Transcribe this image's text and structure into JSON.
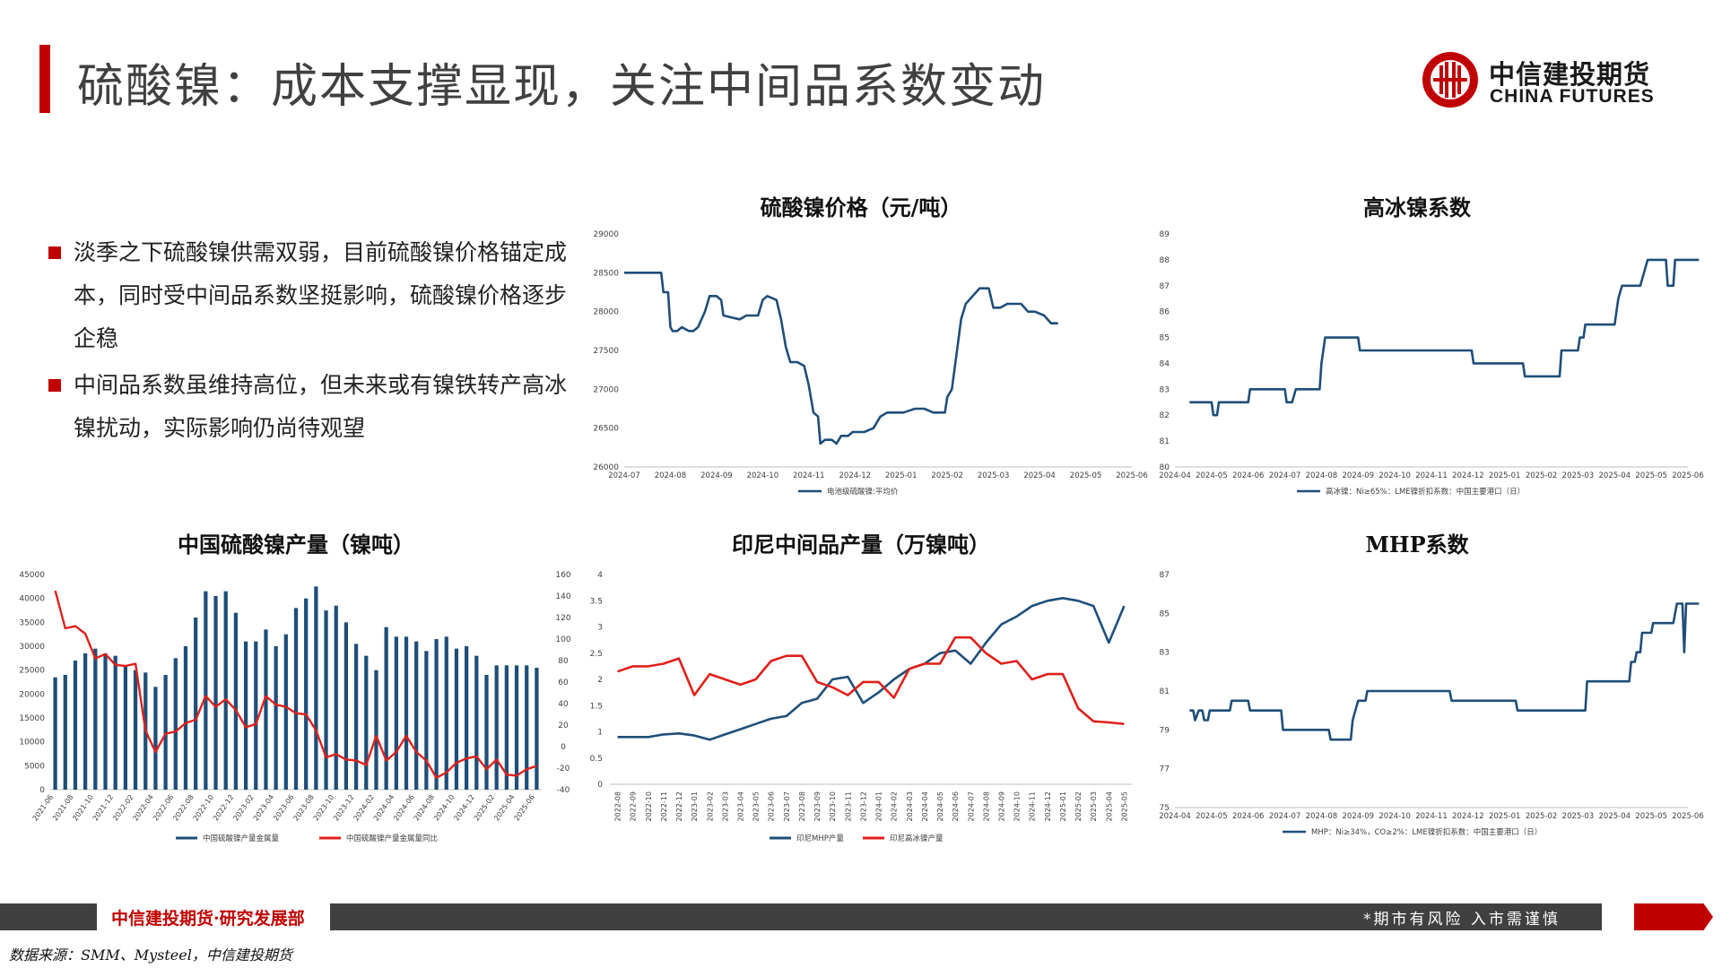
{
  "header": {
    "title": "硫酸镍：成本支撑显现，关注中间品系数变动",
    "logo_cn": "中信建投期货",
    "logo_en": "CHINA FUTURES"
  },
  "bullets": [
    "淡季之下硫酸镍供需双弱，目前硫酸镍价格锚定成本，同时受中间品系数坚挺影响，硫酸镍价格逐步企稳",
    "中间品系数虽维持高位，但未来或有镍铁转产高冰镍扰动，实际影响仍尚待观望"
  ],
  "footer": {
    "dept": "中信建投期货·研究发展部",
    "risk": "*期市有风险  入市需谨慎",
    "source": "数据来源：SMM、Mysteel，中信建投期货"
  },
  "colors": {
    "navy": "#1f4e79",
    "red": "#e0201b",
    "brand_red": "#c00000"
  },
  "chart_data": [
    {
      "id": "nickel-sulfate-price",
      "type": "line",
      "title": "硫酸镍价格（元/吨）",
      "x_ticks": [
        "2024-07",
        "2024-08",
        "2024-09",
        "2024-10",
        "2024-11",
        "2024-12",
        "2025-01",
        "2025-02",
        "2025-03",
        "2025-04",
        "2025-05",
        "2025-06"
      ],
      "y_ticks": [
        "26000",
        "26500",
        "27000",
        "27500",
        "28000",
        "28500",
        "29000"
      ],
      "ylim": [
        26000,
        29000
      ],
      "series": [
        {
          "name": "电池级硫酸镍:平均价",
          "color": "#1f4e79",
          "points": [
            [
              0,
              28500
            ],
            [
              0.8,
              28500
            ],
            [
              0.85,
              28250
            ],
            [
              0.95,
              28250
            ],
            [
              1.0,
              27800
            ],
            [
              1.05,
              27750
            ],
            [
              1.15,
              27750
            ],
            [
              1.25,
              27800
            ],
            [
              1.4,
              27750
            ],
            [
              1.5,
              27750
            ],
            [
              1.6,
              27800
            ],
            [
              1.75,
              28000
            ],
            [
              1.85,
              28200
            ],
            [
              2.0,
              28200
            ],
            [
              2.1,
              28150
            ],
            [
              2.15,
              27950
            ],
            [
              2.5,
              27900
            ],
            [
              2.65,
              27950
            ],
            [
              2.9,
              27950
            ],
            [
              3.0,
              28150
            ],
            [
              3.1,
              28200
            ],
            [
              3.3,
              28150
            ],
            [
              3.4,
              27900
            ],
            [
              3.5,
              27550
            ],
            [
              3.6,
              27350
            ],
            [
              3.75,
              27350
            ],
            [
              3.9,
              27300
            ],
            [
              4.0,
              27050
            ],
            [
              4.1,
              26700
            ],
            [
              4.2,
              26650
            ],
            [
              4.25,
              26300
            ],
            [
              4.35,
              26350
            ],
            [
              4.5,
              26350
            ],
            [
              4.6,
              26300
            ],
            [
              4.7,
              26400
            ],
            [
              4.85,
              26400
            ],
            [
              4.95,
              26450
            ],
            [
              5.2,
              26450
            ],
            [
              5.4,
              26500
            ],
            [
              5.55,
              26650
            ],
            [
              5.7,
              26700
            ],
            [
              5.9,
              26700
            ],
            [
              6.05,
              26700
            ],
            [
              6.3,
              26750
            ],
            [
              6.5,
              26750
            ],
            [
              6.7,
              26700
            ],
            [
              6.95,
              26700
            ],
            [
              7.0,
              26900
            ],
            [
              7.1,
              27000
            ],
            [
              7.2,
              27450
            ],
            [
              7.3,
              27900
            ],
            [
              7.4,
              28100
            ],
            [
              7.55,
              28200
            ],
            [
              7.7,
              28300
            ],
            [
              7.9,
              28300
            ],
            [
              8.0,
              28050
            ],
            [
              8.15,
              28050
            ],
            [
              8.3,
              28100
            ],
            [
              8.6,
              28100
            ],
            [
              8.75,
              28000
            ],
            [
              8.9,
              28000
            ],
            [
              9.1,
              27950
            ],
            [
              9.25,
              27850
            ],
            [
              9.4,
              27850
            ]
          ]
        }
      ]
    },
    {
      "id": "high-matte-nickel-coefficient",
      "type": "line",
      "title": "高冰镍系数",
      "x_ticks": [
        "2024-04",
        "2024-05",
        "2024-06",
        "2024-07",
        "2024-08",
        "2024-09",
        "2024-10",
        "2024-11",
        "2024-12",
        "2025-01",
        "2025-02",
        "2025-03",
        "2025-04",
        "2025-05",
        "2025-06"
      ],
      "y_ticks": [
        "80",
        "81",
        "82",
        "83",
        "84",
        "85",
        "86",
        "87",
        "88",
        "89"
      ],
      "ylim": [
        80,
        89
      ],
      "series": [
        {
          "name": "高冰镍：Ni≥65%：LME镍折扣系数：中国主要港口（日）",
          "color": "#1f4e79",
          "points": [
            [
              0.4,
              82.5
            ],
            [
              0.9,
              82.5
            ],
            [
              1.0,
              82.5
            ],
            [
              1.05,
              82
            ],
            [
              1.15,
              82
            ],
            [
              1.2,
              82.5
            ],
            [
              2.0,
              82.5
            ],
            [
              2.05,
              83
            ],
            [
              3.0,
              83
            ],
            [
              3.05,
              82.5
            ],
            [
              3.2,
              82.5
            ],
            [
              3.3,
              83
            ],
            [
              3.95,
              83
            ],
            [
              4.0,
              84
            ],
            [
              4.1,
              85
            ],
            [
              5.0,
              85
            ],
            [
              5.05,
              84.5
            ],
            [
              7.9,
              84.5
            ],
            [
              8.1,
              84.5
            ],
            [
              8.15,
              84
            ],
            [
              9.4,
              84
            ],
            [
              9.5,
              84
            ],
            [
              9.55,
              83.5
            ],
            [
              10.5,
              83.5
            ],
            [
              10.55,
              84.5
            ],
            [
              11.0,
              84.5
            ],
            [
              11.05,
              85
            ],
            [
              11.15,
              85
            ],
            [
              11.2,
              85.5
            ],
            [
              12.0,
              85.5
            ],
            [
              12.05,
              86
            ],
            [
              12.1,
              86.5
            ],
            [
              12.2,
              87
            ],
            [
              12.7,
              87
            ],
            [
              12.8,
              87.5
            ],
            [
              12.9,
              88
            ],
            [
              13.3,
              88
            ],
            [
              13.4,
              88
            ],
            [
              13.45,
              87
            ],
            [
              13.6,
              87
            ],
            [
              13.65,
              88
            ],
            [
              14.0,
              88
            ],
            [
              14.3,
              88
            ]
          ]
        }
      ]
    },
    {
      "id": "china-nickel-sulfate-output",
      "type": "bar",
      "title": "中国硫酸镍产量（镍吨）",
      "categories": [
        "2021-06",
        "2021-07",
        "2021-08",
        "2021-09",
        "2021-10",
        "2021-11",
        "2021-12",
        "2022-01",
        "2022-02",
        "2022-03",
        "2022-04",
        "2022-05",
        "2022-06",
        "2022-07",
        "2022-08",
        "2022-09",
        "2022-10",
        "2022-11",
        "2022-12",
        "2023-01",
        "2023-02",
        "2023-03",
        "2023-04",
        "2023-05",
        "2023-06",
        "2023-07",
        "2023-08",
        "2023-09",
        "2023-10",
        "2023-11",
        "2023-12",
        "2024-01",
        "2024-02",
        "2024-03",
        "2024-04",
        "2024-05",
        "2024-06",
        "2024-07",
        "2024-08",
        "2024-09",
        "2024-10",
        "2024-11",
        "2024-12",
        "2025-01",
        "2025-02",
        "2025-03",
        "2025-04",
        "2025-05",
        "2025-06"
      ],
      "x_tick_labels": [
        "2021-06",
        "2021-08",
        "2021-10",
        "2021-12",
        "2022-02",
        "2022-04",
        "2022-06",
        "2022-08",
        "2022-10",
        "2022-12",
        "2023-02",
        "2023-04",
        "2023-06",
        "2023-08",
        "2023-10",
        "2023-12",
        "2024-02",
        "2024-04",
        "2024-06",
        "2024-08",
        "2024-10",
        "2024-12",
        "2025-02",
        "2025-04",
        "2025-06"
      ],
      "y_ticks_left": [
        "0",
        "5000",
        "10000",
        "15000",
        "20000",
        "25000",
        "30000",
        "35000",
        "40000",
        "45000"
      ],
      "y_ticks_right": [
        "-40",
        "-20",
        "0",
        "20",
        "40",
        "60",
        "80",
        "100",
        "120",
        "140",
        "160"
      ],
      "ylim_left": [
        0,
        45000
      ],
      "ylim_right": [
        -40,
        160
      ],
      "series": [
        {
          "name": "中国硫酸镍产量金属量",
          "color": "#1f4e79",
          "axis": "left",
          "values": [
            23500,
            24000,
            27000,
            28500,
            29500,
            28500,
            28000,
            26000,
            25000,
            24500,
            21500,
            24000,
            27500,
            30000,
            36000,
            41500,
            40500,
            41500,
            37000,
            31000,
            31000,
            33500,
            30000,
            32500,
            38000,
            40000,
            42500,
            37500,
            38500,
            35000,
            30500,
            28000,
            25000,
            34000,
            32000,
            32000,
            31000,
            29000,
            31500,
            32000,
            29500,
            30000,
            28000,
            24000,
            26000,
            26000,
            26000,
            26000,
            25500
          ]
        },
        {
          "name": "中国硫酸镍产量金属量同比",
          "color": "#e0201b",
          "axis": "right",
          "values": [
            145,
            110,
            112,
            105,
            82,
            86,
            76,
            75,
            77,
            15,
            -5,
            12,
            14,
            22,
            25,
            47,
            37,
            44,
            34,
            18,
            21,
            47,
            39,
            37,
            31,
            30,
            15,
            -10,
            -7,
            -12,
            -13,
            -17,
            10,
            -13,
            -5,
            10,
            -5,
            -13,
            -29,
            -24,
            -15,
            -11,
            -9,
            -21,
            -12,
            -26,
            -27,
            -21,
            -18
          ]
        }
      ]
    },
    {
      "id": "indonesia-intermediate-output",
      "type": "line",
      "title": "印尼中间品产量（万镍吨）",
      "categories": [
        "2022-08",
        "2022-09",
        "2022-10",
        "2022-11",
        "2022-12",
        "2023-01",
        "2023-02",
        "2023-03",
        "2023-04",
        "2023-05",
        "2023-06",
        "2023-07",
        "2023-08",
        "2023-09",
        "2023-10",
        "2023-11",
        "2023-12",
        "2024-01",
        "2024-02",
        "2024-03",
        "2024-04",
        "2024-05",
        "2024-06",
        "2024-07",
        "2024-08",
        "2024-09",
        "2024-10",
        "2024-11",
        "2024-12",
        "2025-01",
        "2025-02",
        "2025-03",
        "2025-04",
        "2025-05"
      ],
      "y_ticks": [
        "0",
        "0.5",
        "1",
        "1.5",
        "2",
        "2.5",
        "3",
        "3.5",
        "4"
      ],
      "ylim": [
        0,
        4
      ],
      "series": [
        {
          "name": "印尼MHP产量",
          "color": "#1f4e79",
          "values": [
            0.9,
            0.9,
            0.9,
            0.95,
            0.97,
            0.93,
            0.85,
            0.95,
            1.05,
            1.15,
            1.25,
            1.3,
            1.55,
            1.63,
            2.0,
            2.05,
            1.55,
            1.75,
            2.0,
            2.2,
            2.3,
            2.5,
            2.55,
            2.3,
            2.7,
            3.05,
            3.2,
            3.4,
            3.5,
            3.55,
            3.5,
            3.4,
            2.7,
            3.4
          ]
        },
        {
          "name": "印尼高冰镍产量",
          "color": "#e0201b",
          "values": [
            2.15,
            2.25,
            2.25,
            2.3,
            2.4,
            1.7,
            2.1,
            2.0,
            1.9,
            2.0,
            2.35,
            2.45,
            2.45,
            1.95,
            1.85,
            1.7,
            1.95,
            1.95,
            1.65,
            2.2,
            2.3,
            2.3,
            2.8,
            2.8,
            2.5,
            2.3,
            2.35,
            2.0,
            2.1,
            2.1,
            1.45,
            1.2,
            1.18,
            1.15
          ]
        }
      ]
    },
    {
      "id": "mhp-coefficient",
      "type": "line",
      "title": "MHP系数",
      "x_ticks": [
        "2024-04",
        "2024-05",
        "2024-06",
        "2024-07",
        "2024-08",
        "2024-09",
        "2024-10",
        "2024-11",
        "2024-12",
        "2025-01",
        "2025-02",
        "2025-03",
        "2025-04",
        "2025-05",
        "2025-06"
      ],
      "y_ticks": [
        "75",
        "77",
        "79",
        "81",
        "83",
        "85",
        "87"
      ],
      "ylim": [
        75,
        87
      ],
      "series": [
        {
          "name": "MHP：Ni≥34%，CO≥2%：LME镍折扣系数：中国主要港口（日）",
          "color": "#1f4e79",
          "points": [
            [
              0.4,
              80
            ],
            [
              0.5,
              80
            ],
            [
              0.55,
              79.5
            ],
            [
              0.65,
              80
            ],
            [
              0.75,
              80
            ],
            [
              0.8,
              79.5
            ],
            [
              0.9,
              79.5
            ],
            [
              0.95,
              80
            ],
            [
              1.5,
              80
            ],
            [
              1.55,
              80.5
            ],
            [
              2.0,
              80.5
            ],
            [
              2.05,
              80
            ],
            [
              2.9,
              80
            ],
            [
              2.95,
              79
            ],
            [
              4.2,
              79
            ],
            [
              4.25,
              78.5
            ],
            [
              4.8,
              78.5
            ],
            [
              4.85,
              79.5
            ],
            [
              5.0,
              80.5
            ],
            [
              5.2,
              80.5
            ],
            [
              5.25,
              81
            ],
            [
              7.5,
              81
            ],
            [
              7.55,
              80.5
            ],
            [
              9.3,
              80.5
            ],
            [
              9.35,
              80
            ],
            [
              11.2,
              80
            ],
            [
              11.25,
              81.5
            ],
            [
              12.4,
              81.5
            ],
            [
              12.45,
              82.5
            ],
            [
              12.55,
              82.5
            ],
            [
              12.6,
              83
            ],
            [
              12.7,
              83
            ],
            [
              12.75,
              84
            ],
            [
              13.0,
              84
            ],
            [
              13.05,
              84.5
            ],
            [
              13.6,
              84.5
            ],
            [
              13.7,
              85.5
            ],
            [
              13.85,
              85.5
            ],
            [
              13.9,
              83
            ],
            [
              13.95,
              85.5
            ],
            [
              14.3,
              85.5
            ]
          ]
        }
      ]
    }
  ]
}
